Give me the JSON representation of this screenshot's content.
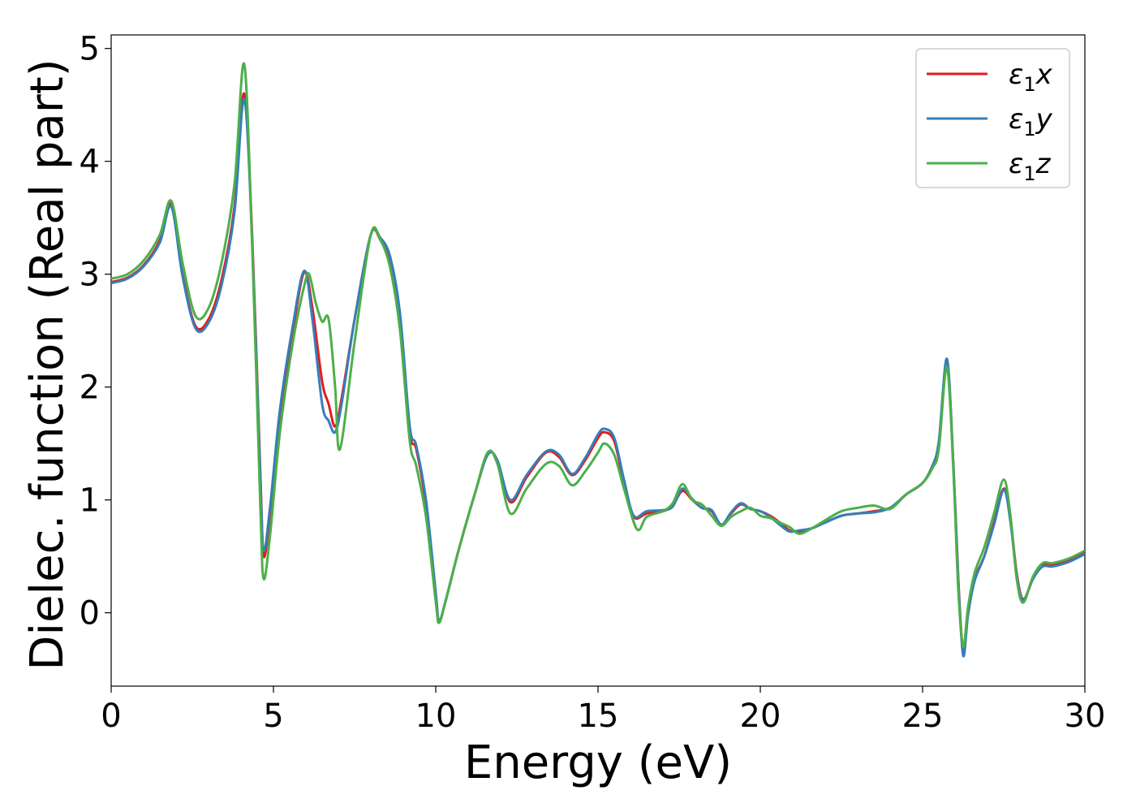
{
  "chart_data": {
    "type": "line",
    "title": "",
    "xlabel": "Energy (eV)",
    "ylabel": "Dielec. function (Real part)",
    "xlim": [
      0,
      30
    ],
    "ylim": [
      -0.65,
      5.12
    ],
    "xticks": [
      0,
      5,
      10,
      15,
      20,
      25,
      30
    ],
    "yticks": [
      0,
      1,
      2,
      3,
      4,
      5
    ],
    "xtick_labels": [
      "0",
      "5",
      "10",
      "15",
      "20",
      "25",
      "30"
    ],
    "ytick_labels": [
      "0",
      "1",
      "2",
      "3",
      "4",
      "5"
    ],
    "grid": false,
    "legend_position": "top-right",
    "series": [
      {
        "name_main": "ε",
        "name_sub": "1",
        "name_suffix": "x",
        "color": "#e41a1c",
        "x": [
          0,
          0.5,
          1.0,
          1.5,
          1.85,
          2.2,
          2.6,
          3.0,
          3.4,
          3.8,
          4.1,
          4.35,
          4.6,
          4.7,
          4.9,
          5.2,
          5.6,
          5.95,
          6.2,
          6.5,
          6.7,
          6.9,
          7.1,
          7.5,
          8.0,
          8.3,
          8.6,
          8.9,
          9.2,
          9.4,
          9.7,
          10.0,
          10.1,
          10.3,
          10.7,
          11.2,
          11.6,
          11.9,
          12.3,
          12.8,
          13.4,
          13.8,
          14.2,
          14.6,
          15.0,
          15.2,
          15.5,
          15.8,
          16.1,
          16.5,
          17.0,
          17.3,
          17.6,
          17.9,
          18.2,
          18.5,
          18.8,
          19.1,
          19.4,
          19.7,
          20.0,
          20.3,
          20.6,
          20.9,
          21.2,
          21.6,
          22.0,
          22.5,
          23.0,
          23.5,
          24.0,
          24.5,
          25.0,
          25.3,
          25.5,
          25.75,
          25.95,
          26.1,
          26.25,
          26.4,
          26.6,
          26.9,
          27.2,
          27.5,
          27.7,
          27.9,
          28.1,
          28.4,
          28.7,
          29.0,
          29.5,
          30.0
        ],
        "y": [
          2.93,
          2.97,
          3.08,
          3.3,
          3.62,
          3.0,
          2.54,
          2.6,
          2.95,
          3.6,
          4.6,
          3.3,
          1.2,
          0.5,
          0.9,
          1.75,
          2.5,
          3.02,
          2.7,
          2.05,
          1.85,
          1.65,
          1.9,
          2.6,
          3.35,
          3.3,
          3.1,
          2.6,
          1.6,
          1.45,
          0.95,
          0.15,
          -0.08,
          0.1,
          0.55,
          1.05,
          1.4,
          1.35,
          0.98,
          1.2,
          1.42,
          1.38,
          1.22,
          1.35,
          1.55,
          1.6,
          1.52,
          1.15,
          0.85,
          0.88,
          0.9,
          0.95,
          1.08,
          1.0,
          0.93,
          0.9,
          0.78,
          0.88,
          0.96,
          0.92,
          0.9,
          0.86,
          0.8,
          0.73,
          0.72,
          0.75,
          0.8,
          0.86,
          0.88,
          0.9,
          0.93,
          1.05,
          1.15,
          1.3,
          1.5,
          2.2,
          1.3,
          0.3,
          -0.35,
          0.0,
          0.3,
          0.5,
          0.8,
          1.1,
          0.85,
          0.35,
          0.12,
          0.3,
          0.42,
          0.42,
          0.46,
          0.53
        ]
      },
      {
        "name_main": "ε",
        "name_sub": "1",
        "name_suffix": "y",
        "color": "#377eb8",
        "x": [
          0,
          0.5,
          1.0,
          1.5,
          1.85,
          2.2,
          2.6,
          3.0,
          3.4,
          3.8,
          4.1,
          4.35,
          4.6,
          4.7,
          4.9,
          5.2,
          5.6,
          5.95,
          6.2,
          6.5,
          6.7,
          6.9,
          7.1,
          7.5,
          8.0,
          8.3,
          8.6,
          8.9,
          9.2,
          9.4,
          9.7,
          10.0,
          10.1,
          10.3,
          10.7,
          11.2,
          11.6,
          11.9,
          12.3,
          12.8,
          13.4,
          13.8,
          14.2,
          14.6,
          15.0,
          15.2,
          15.5,
          15.8,
          16.1,
          16.5,
          17.0,
          17.3,
          17.6,
          17.9,
          18.2,
          18.5,
          18.8,
          19.1,
          19.4,
          19.7,
          20.0,
          20.3,
          20.6,
          20.9,
          21.2,
          21.6,
          22.0,
          22.5,
          23.0,
          23.5,
          24.0,
          24.5,
          25.0,
          25.3,
          25.5,
          25.75,
          25.95,
          26.1,
          26.25,
          26.4,
          26.6,
          26.9,
          27.2,
          27.5,
          27.7,
          27.9,
          28.1,
          28.4,
          28.7,
          29.0,
          29.5,
          30.0
        ],
        "y": [
          2.92,
          2.96,
          3.07,
          3.28,
          3.6,
          2.98,
          2.52,
          2.57,
          2.9,
          3.55,
          4.55,
          3.25,
          1.15,
          0.55,
          0.95,
          1.8,
          2.55,
          3.03,
          2.6,
          1.85,
          1.7,
          1.6,
          1.85,
          2.6,
          3.35,
          3.32,
          3.15,
          2.65,
          1.65,
          1.48,
          1.0,
          0.18,
          -0.07,
          0.1,
          0.55,
          1.05,
          1.4,
          1.35,
          1.0,
          1.22,
          1.43,
          1.4,
          1.23,
          1.37,
          1.58,
          1.63,
          1.55,
          1.18,
          0.86,
          0.9,
          0.91,
          0.94,
          1.1,
          1.01,
          0.93,
          0.91,
          0.78,
          0.89,
          0.97,
          0.92,
          0.9,
          0.85,
          0.78,
          0.72,
          0.73,
          0.75,
          0.8,
          0.86,
          0.88,
          0.89,
          0.93,
          1.05,
          1.15,
          1.3,
          1.52,
          2.25,
          1.3,
          0.28,
          -0.38,
          -0.02,
          0.28,
          0.5,
          0.78,
          1.09,
          0.82,
          0.33,
          0.11,
          0.3,
          0.41,
          0.41,
          0.45,
          0.52
        ]
      },
      {
        "name_main": "ε",
        "name_sub": "1",
        "name_suffix": "z",
        "color": "#4daf4a",
        "x": [
          0,
          0.5,
          1.0,
          1.5,
          1.85,
          2.2,
          2.6,
          3.0,
          3.4,
          3.8,
          4.1,
          4.35,
          4.6,
          4.7,
          4.9,
          5.2,
          5.6,
          5.95,
          6.1,
          6.3,
          6.5,
          6.7,
          6.9,
          7.05,
          7.5,
          8.0,
          8.3,
          8.6,
          8.9,
          9.2,
          9.4,
          9.7,
          10.0,
          10.1,
          10.3,
          10.7,
          11.2,
          11.6,
          11.9,
          12.3,
          12.8,
          13.4,
          13.8,
          14.2,
          14.6,
          15.0,
          15.2,
          15.5,
          15.8,
          16.2,
          16.5,
          17.0,
          17.3,
          17.6,
          17.9,
          18.2,
          18.5,
          18.8,
          19.1,
          19.4,
          19.7,
          20.0,
          20.3,
          20.6,
          20.9,
          21.2,
          21.6,
          22.0,
          22.5,
          23.0,
          23.5,
          24.0,
          24.5,
          25.0,
          25.3,
          25.5,
          25.75,
          25.95,
          26.1,
          26.25,
          26.4,
          26.6,
          26.9,
          27.2,
          27.5,
          27.7,
          27.9,
          28.1,
          28.4,
          28.7,
          29.0,
          29.5,
          30.0
        ],
        "y": [
          2.96,
          3.0,
          3.12,
          3.35,
          3.65,
          3.1,
          2.63,
          2.7,
          3.1,
          3.8,
          4.86,
          3.2,
          0.9,
          0.3,
          0.7,
          1.6,
          2.4,
          2.9,
          3.0,
          2.75,
          2.58,
          2.6,
          2.0,
          1.45,
          2.4,
          3.35,
          3.3,
          3.05,
          2.5,
          1.52,
          1.3,
          0.85,
          0.1,
          -0.09,
          0.1,
          0.55,
          1.05,
          1.42,
          1.32,
          0.88,
          1.1,
          1.32,
          1.3,
          1.13,
          1.25,
          1.42,
          1.5,
          1.4,
          1.1,
          0.74,
          0.85,
          0.9,
          0.97,
          1.14,
          1.0,
          0.96,
          0.86,
          0.77,
          0.85,
          0.9,
          0.93,
          0.86,
          0.84,
          0.8,
          0.76,
          0.7,
          0.75,
          0.82,
          0.9,
          0.93,
          0.95,
          0.92,
          1.05,
          1.15,
          1.28,
          1.45,
          2.18,
          1.25,
          0.2,
          -0.3,
          0.05,
          0.35,
          0.58,
          0.88,
          1.18,
          0.88,
          0.3,
          0.09,
          0.32,
          0.44,
          0.44,
          0.48,
          0.55
        ]
      }
    ]
  }
}
